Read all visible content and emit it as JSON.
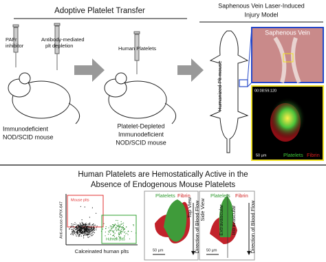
{
  "left_panel": {
    "title": "Adoptive Platelet Transfer",
    "syringe_labels": [
      [
        "PAFr",
        "inhibitor"
      ],
      [
        "Antibody-mediated",
        "plt depletion"
      ],
      [
        "Human Platelets"
      ]
    ],
    "mouse_labels": [
      [
        "Immunodeficient",
        "NOD/SCID mouse"
      ],
      [
        "Platelet-Depleted",
        "Immunodeficient",
        "NOD/SCID mouse"
      ]
    ]
  },
  "right_panel": {
    "title": [
      "Saphenous Vein Laser-Induced",
      "Injury Model"
    ],
    "mouse_label": "Humanized Plt mouse",
    "photo_label": "Saphenous Vein",
    "timestamp": "00:08:59.120",
    "legend": [
      "Platelets",
      "Fibrin"
    ],
    "scale": "50 µm"
  },
  "bottom": {
    "title": [
      "Human Platelets are Hemostatically Active in the",
      "Absence of Endogenous Mouse Platelets"
    ],
    "flow": {
      "gates": [
        "Mouse plts",
        "Human plts"
      ],
      "y_label": "Anti-mouse-GPIX-647",
      "x_label": "Calceinated human plts"
    },
    "views": [
      {
        "legend": [
          "Platelets",
          "Fibrin"
        ],
        "view": "Top View",
        "flow": "Direction of Blood Flow",
        "scale": "50 µm"
      },
      {
        "legend": [
          "Platelets",
          "Fibrin"
        ],
        "view": "Side View",
        "sides": [
          "Extravascular",
          "Intravascular"
        ],
        "flow": "Direction of Blood Flow",
        "scale": "50 µm"
      }
    ]
  }
}
